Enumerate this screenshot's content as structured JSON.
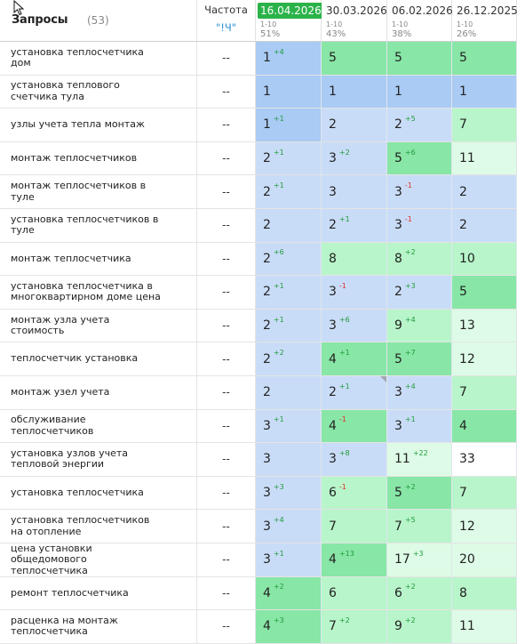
{
  "header": {
    "title": "Запросы",
    "count": "(53)",
    "frequency_label": "Частота",
    "frequency_operator": "\"!Ч\""
  },
  "dates": [
    {
      "label": "16.04.2026",
      "active": true,
      "range": "1-10",
      "percent": "51%"
    },
    {
      "label": "30.03.2026",
      "active": false,
      "range": "1-10",
      "percent": "43%"
    },
    {
      "label": "06.02.2026",
      "active": false,
      "range": "1-10",
      "percent": "38%"
    },
    {
      "label": "26.12.2025",
      "active": false,
      "range": "1-10",
      "percent": "26%"
    }
  ],
  "rows": [
    {
      "query": "установка теплосчетчика дом",
      "freq": "--",
      "pos": [
        {
          "v": "1",
          "d": "+4"
        },
        {
          "v": "5"
        },
        {
          "v": "5"
        },
        {
          "v": "5"
        }
      ]
    },
    {
      "query": "установка теплового счетчика тула",
      "freq": "--",
      "pos": [
        {
          "v": "1"
        },
        {
          "v": "1"
        },
        {
          "v": "1"
        },
        {
          "v": "1"
        }
      ]
    },
    {
      "query": "узлы учета тепла монтаж",
      "freq": "--",
      "pos": [
        {
          "v": "1",
          "d": "+1"
        },
        {
          "v": "2"
        },
        {
          "v": "2",
          "d": "+5"
        },
        {
          "v": "7"
        }
      ]
    },
    {
      "query": "монтаж теплосчетчиков",
      "freq": "--",
      "pos": [
        {
          "v": "2",
          "d": "+1"
        },
        {
          "v": "3",
          "d": "+2"
        },
        {
          "v": "5",
          "d": "+6"
        },
        {
          "v": "11"
        }
      ]
    },
    {
      "query": "монтаж теплосчетчиков в туле",
      "freq": "--",
      "pos": [
        {
          "v": "2",
          "d": "+1"
        },
        {
          "v": "3"
        },
        {
          "v": "3",
          "d": "-1"
        },
        {
          "v": "2"
        }
      ]
    },
    {
      "query": "установка теплосчетчиков в туле",
      "freq": "--",
      "pos": [
        {
          "v": "2"
        },
        {
          "v": "2",
          "d": "+1"
        },
        {
          "v": "3",
          "d": "-1"
        },
        {
          "v": "2"
        }
      ]
    },
    {
      "query": "монтаж теплосчетчика",
      "freq": "--",
      "pos": [
        {
          "v": "2",
          "d": "+6"
        },
        {
          "v": "8"
        },
        {
          "v": "8",
          "d": "+2"
        },
        {
          "v": "10"
        }
      ]
    },
    {
      "query": "установка теплосчетчика в многоквартирном доме цена",
      "freq": "--",
      "pos": [
        {
          "v": "2",
          "d": "+1"
        },
        {
          "v": "3",
          "d": "-1"
        },
        {
          "v": "2",
          "d": "+3"
        },
        {
          "v": "5"
        }
      ]
    },
    {
      "query": "монтаж узла учета стоимость",
      "freq": "--",
      "pos": [
        {
          "v": "2",
          "d": "+1"
        },
        {
          "v": "3",
          "d": "+6"
        },
        {
          "v": "9",
          "d": "+4"
        },
        {
          "v": "13"
        }
      ]
    },
    {
      "query": "теплосчетчик установка",
      "freq": "--",
      "pos": [
        {
          "v": "2",
          "d": "+2"
        },
        {
          "v": "4",
          "d": "+1"
        },
        {
          "v": "5",
          "d": "+7"
        },
        {
          "v": "12"
        }
      ]
    },
    {
      "query": "монтаж узел учета",
      "freq": "--",
      "pos": [
        {
          "v": "2"
        },
        {
          "v": "2",
          "d": "+1"
        },
        {
          "v": "3",
          "d": "+4"
        },
        {
          "v": "7"
        }
      ]
    },
    {
      "query": "обслуживание теплосчетчиков",
      "freq": "--",
      "pos": [
        {
          "v": "3",
          "d": "+1"
        },
        {
          "v": "4",
          "d": "-1"
        },
        {
          "v": "3",
          "d": "+1"
        },
        {
          "v": "4"
        }
      ]
    },
    {
      "query": "установка узлов учета тепловой энергии",
      "freq": "--",
      "pos": [
        {
          "v": "3"
        },
        {
          "v": "3",
          "d": "+8"
        },
        {
          "v": "11",
          "d": "+22"
        },
        {
          "v": "33"
        }
      ]
    },
    {
      "query": "установка теплосчетчика",
      "freq": "--",
      "pos": [
        {
          "v": "3",
          "d": "+3"
        },
        {
          "v": "6",
          "d": "-1"
        },
        {
          "v": "5",
          "d": "+2"
        },
        {
          "v": "7"
        }
      ]
    },
    {
      "query": "установка теплосчетчиков на отопление",
      "freq": "--",
      "pos": [
        {
          "v": "3",
          "d": "+4"
        },
        {
          "v": "7"
        },
        {
          "v": "7",
          "d": "+5"
        },
        {
          "v": "12"
        }
      ]
    },
    {
      "query": "цена установки общедомового теплосчетчика",
      "freq": "--",
      "pos": [
        {
          "v": "3",
          "d": "+1"
        },
        {
          "v": "4",
          "d": "+13"
        },
        {
          "v": "17",
          "d": "+3"
        },
        {
          "v": "20"
        }
      ]
    },
    {
      "query": "ремонт теплосчетчика",
      "freq": "--",
      "pos": [
        {
          "v": "4",
          "d": "+2"
        },
        {
          "v": "6"
        },
        {
          "v": "6",
          "d": "+2"
        },
        {
          "v": "8"
        }
      ]
    },
    {
      "query": "расценка на монтаж теплосчетчика",
      "freq": "--",
      "pos": [
        {
          "v": "4",
          "d": "+3"
        },
        {
          "v": "7",
          "d": "+2"
        },
        {
          "v": "9",
          "d": "+2"
        },
        {
          "v": "11"
        }
      ]
    }
  ],
  "colors": {
    "active_date": "#2bb34a",
    "top1": "#a9cbf4",
    "top3": "#c9dcf7",
    "top5": "#88e6a6",
    "top10": "#b8f5ca",
    "top20": "#ddfbe6",
    "delta_up": "#1f9b3c",
    "delta_down": "#e0302c",
    "freq_operator": "#2a8fd6"
  }
}
